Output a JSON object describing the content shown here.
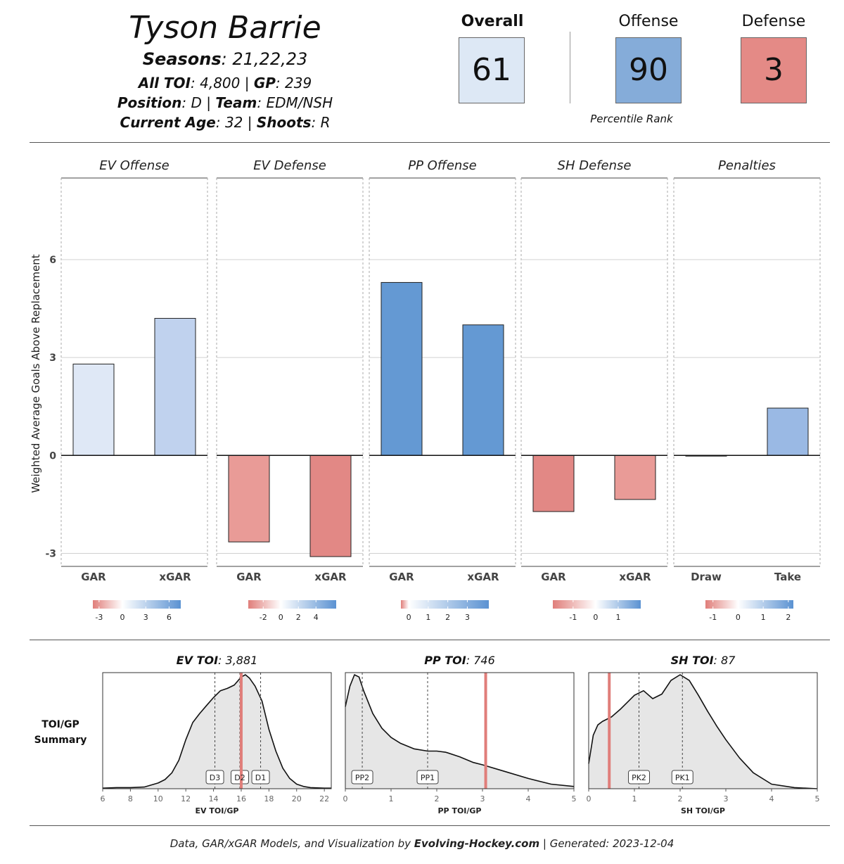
{
  "player": {
    "name": "Tyson Barrie",
    "seasons_label": "Seasons",
    "seasons": "21,22,23",
    "toi_label": "All TOI",
    "toi": "4,800",
    "gp_label": "GP",
    "gp": "239",
    "position_label": "Position",
    "position": "D",
    "team_label": "Team",
    "team": "EDM/NSH",
    "age_label": "Current Age",
    "age": "32",
    "shoots_label": "Shoots",
    "shoots": "R"
  },
  "ranks": {
    "overall": {
      "label": "Overall",
      "value": "61",
      "color": "#dde8f5"
    },
    "offense": {
      "label": "Offense",
      "value": "90",
      "color": "#85acd9"
    },
    "defense": {
      "label": "Defense",
      "value": "3",
      "color": "#e48a86"
    },
    "caption": "Percentile Rank"
  },
  "chart_data": [
    {
      "type": "bar",
      "ylabel": "Weighted Average Goals Above Replacement",
      "ylim": [
        -3.4,
        8.5
      ],
      "yticks": [
        -3,
        0,
        3,
        6
      ],
      "grid": true,
      "panels": [
        {
          "title": "EV Offense",
          "categories": [
            "GAR",
            "xGAR"
          ],
          "values": [
            2.8,
            4.2
          ],
          "colors": [
            "#dfe8f6",
            "#c0d2ee"
          ],
          "legend": {
            "min": -3.8,
            "max": 7.5,
            "ticks": [
              -3,
              0,
              3,
              6
            ]
          }
        },
        {
          "title": "EV Defense",
          "categories": [
            "GAR",
            "xGAR"
          ],
          "values": [
            -2.65,
            -3.1
          ],
          "colors": [
            "#e99b97",
            "#e28885"
          ],
          "legend": {
            "min": -3.7,
            "max": 6.3,
            "ticks": [
              -2,
              0,
              2,
              4
            ]
          }
        },
        {
          "title": "PP Offense",
          "categories": [
            "GAR",
            "xGAR"
          ],
          "values": [
            5.3,
            4.0
          ],
          "colors": [
            "#6499d3",
            "#6499d3"
          ],
          "legend": {
            "min": -0.4,
            "max": 4.1,
            "ticks": [
              0,
              1,
              2,
              3
            ]
          }
        },
        {
          "title": "SH Defense",
          "categories": [
            "GAR",
            "xGAR"
          ],
          "values": [
            -1.72,
            -1.35
          ],
          "colors": [
            "#e28885",
            "#e99b97"
          ],
          "legend": {
            "min": -1.9,
            "max": 2.0,
            "ticks": [
              -1,
              0,
              1
            ]
          }
        },
        {
          "title": "Penalties",
          "categories": [
            "Draw",
            "Take"
          ],
          "values": [
            -0.02,
            1.45
          ],
          "colors": [
            "#ffffff",
            "#9ab9e4"
          ],
          "legend": {
            "min": -1.3,
            "max": 2.2,
            "ticks": [
              -1,
              0,
              1,
              2
            ]
          }
        }
      ]
    },
    {
      "type": "area",
      "side_label": [
        "TOI/GP",
        "Summary"
      ],
      "panels": [
        {
          "title_label": "EV TOI",
          "title_value": "3,881",
          "xlabel": "EV TOI/GP",
          "xlim": [
            6,
            22.5
          ],
          "xticks": [
            6,
            8,
            10,
            12,
            14,
            16,
            18,
            20,
            22
          ],
          "density_x": [
            6,
            7,
            8,
            9,
            10,
            10.5,
            11,
            11.5,
            12,
            12.5,
            13,
            13.5,
            14,
            14.5,
            15,
            15.5,
            16,
            16.3,
            16.6,
            17,
            17.5,
            18,
            18.5,
            19,
            19.5,
            20,
            20.5,
            21,
            22,
            22.5
          ],
          "density_y": [
            0.005,
            0.01,
            0.01,
            0.015,
            0.05,
            0.08,
            0.14,
            0.25,
            0.43,
            0.58,
            0.66,
            0.73,
            0.8,
            0.86,
            0.88,
            0.91,
            0.98,
            1.0,
            0.97,
            0.9,
            0.77,
            0.52,
            0.33,
            0.18,
            0.09,
            0.04,
            0.02,
            0.01,
            0.005,
            0.005
          ],
          "markers": [
            {
              "label": "D3",
              "x": 14.1
            },
            {
              "label": "D2",
              "x": 15.9
            },
            {
              "label": "D1",
              "x": 17.4
            }
          ],
          "player_value": 16.0
        },
        {
          "title_label": "PP TOI",
          "title_value": "746",
          "xlabel": "PP TOI/GP",
          "xlim": [
            0,
            5
          ],
          "xticks": [
            0,
            1,
            2,
            3,
            4,
            5
          ],
          "density_x": [
            0,
            0.1,
            0.2,
            0.3,
            0.4,
            0.6,
            0.8,
            1.0,
            1.2,
            1.5,
            1.8,
            2.0,
            2.2,
            2.5,
            2.8,
            3.0,
            3.5,
            4.0,
            4.5,
            5.0
          ],
          "density_y": [
            0.72,
            0.9,
            1.0,
            0.98,
            0.86,
            0.66,
            0.53,
            0.45,
            0.4,
            0.35,
            0.33,
            0.33,
            0.32,
            0.28,
            0.23,
            0.21,
            0.15,
            0.09,
            0.04,
            0.02
          ],
          "markers": [
            {
              "label": "PP2",
              "x": 0.37
            },
            {
              "label": "PP1",
              "x": 1.8
            }
          ],
          "player_value": 3.07
        },
        {
          "title_label": "SH TOI",
          "title_value": "87",
          "xlabel": "SH TOI/GP",
          "xlim": [
            0,
            5
          ],
          "xticks": [
            0,
            1,
            2,
            3,
            4,
            5
          ],
          "density_x": [
            0,
            0.1,
            0.2,
            0.3,
            0.5,
            0.7,
            1.0,
            1.2,
            1.4,
            1.6,
            1.8,
            2.0,
            2.2,
            2.4,
            2.6,
            2.8,
            3.0,
            3.3,
            3.6,
            4.0,
            4.5,
            5.0
          ],
          "density_y": [
            0.22,
            0.47,
            0.56,
            0.59,
            0.63,
            0.7,
            0.82,
            0.86,
            0.79,
            0.83,
            0.95,
            1.0,
            0.95,
            0.82,
            0.68,
            0.55,
            0.43,
            0.27,
            0.14,
            0.04,
            0.01,
            0.0
          ],
          "markers": [
            {
              "label": "PK2",
              "x": 1.1
            },
            {
              "label": "PK1",
              "x": 2.05
            }
          ],
          "player_value": 0.45
        }
      ]
    }
  ],
  "colors": {
    "positive": "#5b92d2",
    "negative": "#e07e7a",
    "player_line": "#e07e7a",
    "density_fill": "#e6e6e6"
  },
  "footer": {
    "prefix": "Data, GAR/xGAR Models, and Visualization by ",
    "brand": "Evolving-Hockey.com",
    "suffix": " | Generated: 2023-12-04"
  }
}
